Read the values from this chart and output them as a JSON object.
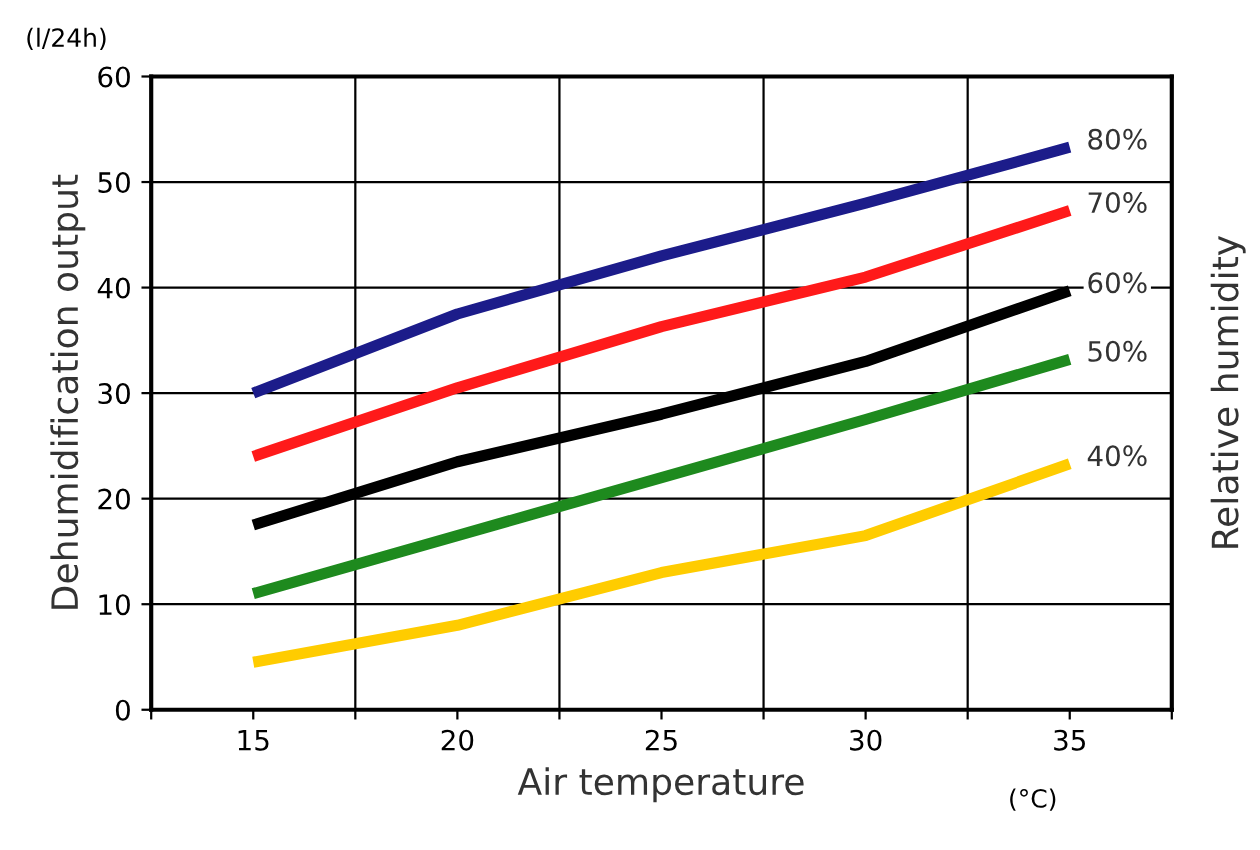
{
  "chart_data": {
    "type": "line",
    "xlabel": "Air temperature",
    "ylabel": "Dehumidification output",
    "y2label": "Relative humidity",
    "annotations": [
      "(l/24h)",
      "(°C)"
    ],
    "x": [
      15,
      20,
      25,
      30,
      35
    ],
    "series": [
      {
        "name": "80%",
        "color": "#1c1c8a",
        "values": [
          30,
          37.5,
          43,
          48,
          53.3
        ]
      },
      {
        "name": "70%",
        "color": "#ff1a1a",
        "values": [
          24,
          30.5,
          36.3,
          41,
          47.3
        ]
      },
      {
        "name": "60%",
        "color": "#000000",
        "values": [
          17.5,
          23.5,
          28,
          33,
          39.7
        ]
      },
      {
        "name": "50%",
        "color": "#1e8a1e",
        "values": [
          11,
          16.5,
          22,
          27.5,
          33.2
        ]
      },
      {
        "name": "40%",
        "color": "#ffcc00",
        "values": [
          4.5,
          8,
          13,
          16.5,
          23.3
        ]
      }
    ],
    "xlim": [
      12.5,
      37.5
    ],
    "xticks": [
      {
        "value": 12.5,
        "label": null
      },
      15,
      {
        "value": 17.5,
        "label": null
      },
      20,
      {
        "value": 22.5,
        "label": null
      },
      25,
      {
        "value": 27.5,
        "label": null
      },
      30,
      {
        "value": 32.5,
        "label": null
      },
      35,
      {
        "value": 37.5,
        "label": null
      }
    ],
    "ylim": [
      0,
      60
    ],
    "yticks": [
      0,
      10,
      20,
      30,
      40,
      50,
      60
    ],
    "grid": true,
    "legend": false,
    "marker": "none",
    "line_style": "solid"
  }
}
